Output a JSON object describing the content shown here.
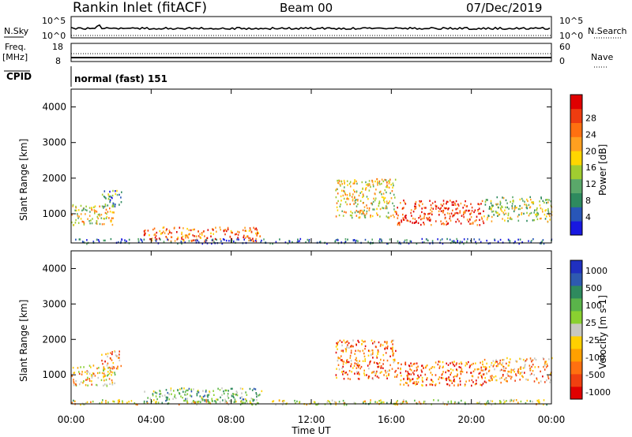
{
  "header": {
    "station": "Rankin Inlet (fitACF)",
    "beam": "Beam 00",
    "date": "07/Dec/2019"
  },
  "status_panel": {
    "nsky_label": "N.Sky",
    "nsky_ticks": [
      "10^5",
      "10^0"
    ],
    "nsearch_label": "N.Search",
    "nsearch_ticks": [
      "10^5",
      "10^0"
    ],
    "freq_label_1": "Freq.",
    "freq_label_2": "[MHz]",
    "freq_ticks": [
      "18",
      "8"
    ],
    "nave_label": "Nave",
    "nave_ticks": [
      "60",
      "0"
    ],
    "cpid_label": "CPID",
    "cpid_text": "normal (fast) 151"
  },
  "chart_data": [
    {
      "type": "heatmap",
      "name": "power",
      "ylabel": "Slant Range [km]",
      "ylim": [
        180,
        4500
      ],
      "yticks": [
        "1000",
        "2000",
        "3000",
        "4000"
      ],
      "colorbar_label": "Power [dB]",
      "colorbar_ticks": [
        "4",
        "8",
        "12",
        "16",
        "20",
        "24",
        "28"
      ],
      "colorbar_colors": [
        "#1818e0",
        "#2856b8",
        "#2e8a5e",
        "#5aa86a",
        "#a0cc30",
        "#ffd600",
        "#ffa020",
        "#ff7010",
        "#ee3c10",
        "#e00000"
      ],
      "regions": [
        {
          "t0": 0.0,
          "t1": 2.2,
          "r0": 700,
          "r1": 1300,
          "level": 0.55
        },
        {
          "t0": 1.5,
          "t1": 2.5,
          "r0": 1200,
          "r1": 1700,
          "level": 0.3
        },
        {
          "t0": 3.6,
          "t1": 9.5,
          "r0": 250,
          "r1": 650,
          "level": 0.75
        },
        {
          "t0": 13.2,
          "t1": 16.2,
          "r0": 900,
          "r1": 2000,
          "level": 0.55
        },
        {
          "t0": 16.2,
          "t1": 20.6,
          "r0": 700,
          "r1": 1400,
          "level": 0.85
        },
        {
          "t0": 20.6,
          "t1": 24.0,
          "r0": 800,
          "r1": 1500,
          "level": 0.45
        },
        {
          "t0": 0.0,
          "t1": 24.0,
          "r0": 180,
          "r1": 320,
          "level": 0.15
        }
      ]
    },
    {
      "type": "heatmap",
      "name": "velocity",
      "xlabel": "Time UT",
      "ylabel": "Slant Range [km]",
      "ylim": [
        180,
        4500
      ],
      "xticks": [
        "00:00",
        "04:00",
        "08:00",
        "12:00",
        "16:00",
        "20:00",
        "00:00"
      ],
      "yticks": [
        "1000",
        "2000",
        "3000",
        "4000"
      ],
      "colorbar_label": "Velocity [m s-1]",
      "colorbar_ticks": [
        "1000",
        "500",
        "100",
        "25",
        "-25",
        "-100",
        "-500",
        "-1000"
      ],
      "colorbar_colors": [
        "#2030c0",
        "#2e5ab0",
        "#2e8a5e",
        "#5ab44a",
        "#8ad030",
        "#c8c8c0",
        "#ffd000",
        "#ffa000",
        "#ff7010",
        "#f04010",
        "#e00000"
      ],
      "regions": [
        {
          "t0": 0.0,
          "t1": 2.2,
          "r0": 700,
          "r1": 1300,
          "level": 0.6
        },
        {
          "t0": 1.5,
          "t1": 2.5,
          "r0": 1200,
          "r1": 1700,
          "level": 0.7
        },
        {
          "t0": 3.6,
          "t1": 9.5,
          "r0": 250,
          "r1": 650,
          "level": 0.35
        },
        {
          "t0": 13.2,
          "t1": 16.2,
          "r0": 900,
          "r1": 2000,
          "level": 0.75
        },
        {
          "t0": 16.2,
          "t1": 20.6,
          "r0": 700,
          "r1": 1400,
          "level": 0.8
        },
        {
          "t0": 20.6,
          "t1": 24.0,
          "r0": 800,
          "r1": 1500,
          "level": 0.7
        },
        {
          "t0": 0.0,
          "t1": 24.0,
          "r0": 180,
          "r1": 320,
          "level": 0.5
        }
      ]
    }
  ]
}
